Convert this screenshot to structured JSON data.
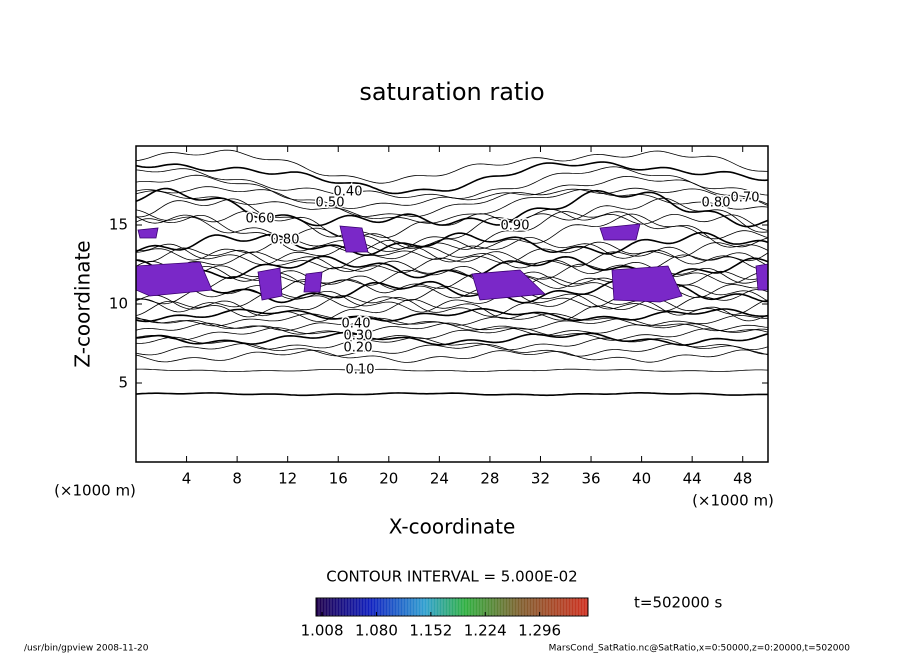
{
  "chart_data": {
    "type": "contour",
    "title": "saturation ratio",
    "x_label": "X-coordinate",
    "y_label": "Z-coordinate",
    "x_unit": "(×1000 m)",
    "y_unit": "(×1000 m)",
    "xlim": [
      0,
      50
    ],
    "xticks": [
      4,
      8,
      12,
      16,
      20,
      24,
      28,
      32,
      36,
      40,
      44,
      48
    ],
    "ylim": [
      0,
      20
    ],
    "yticks": [
      5,
      10,
      15
    ],
    "contour_labels": [
      {
        "value": 0.1,
        "label": "0.10"
      },
      {
        "value": 0.2,
        "label": "0.20"
      },
      {
        "value": 0.3,
        "label": "0.30"
      },
      {
        "value": 0.4,
        "label": "0.40"
      },
      {
        "value": 0.4,
        "label": "0.40"
      },
      {
        "value": 0.5,
        "label": "0.50"
      },
      {
        "value": 0.6,
        "label": "0.60"
      },
      {
        "value": 0.7,
        "label": "0.70"
      },
      {
        "value": 0.8,
        "label": "0.80"
      },
      {
        "value": 0.8,
        "label": "0.80"
      },
      {
        "value": 0.9,
        "label": "0.90"
      }
    ],
    "contour_interval": "CONTOUR INTERVAL = 5.000E-02",
    "colorbar": {
      "clim": [
        1.0,
        1.36
      ],
      "ticks": [
        {
          "value": 1.008,
          "label": "1.008"
        },
        {
          "value": 1.08,
          "label": "1.080"
        },
        {
          "value": 1.152,
          "label": "1.152"
        },
        {
          "value": 1.224,
          "label": "1.224"
        },
        {
          "value": 1.296,
          "label": "1.296"
        }
      ]
    },
    "time_label": "t=502000 s",
    "footer_left": "/usr/bin/gpview  2008-11-20",
    "footer_right": "MarsCond_SatRatio.nc@SatRatio,x=0:50000,z=0:20000,t=502000"
  }
}
